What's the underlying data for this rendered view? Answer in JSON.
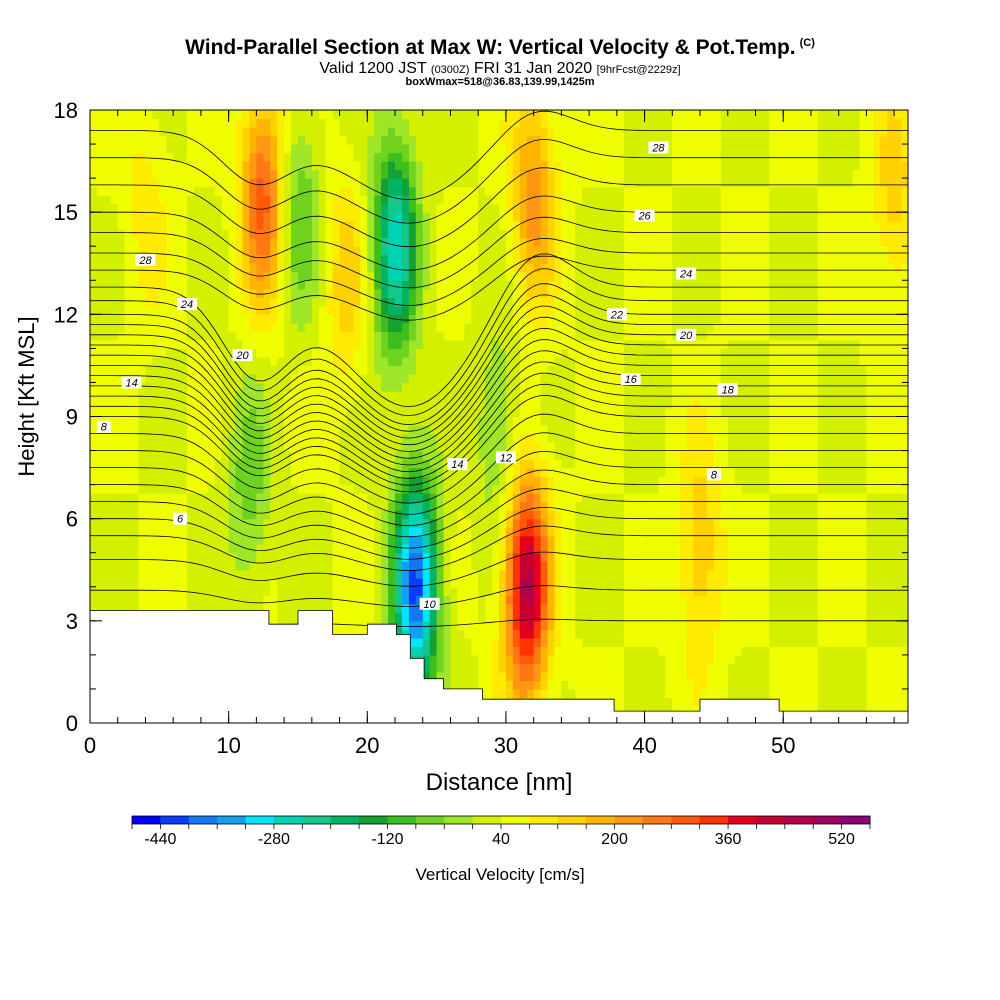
{
  "title": {
    "main": "Wind-Parallel Section at Max W: Vertical Velocity & Pot.Temp.",
    "copyright": "(C)",
    "valid_prefix": "Valid 1200 JST",
    "utc": "(0300Z)",
    "valid_date": "FRI 31 Jan 2020",
    "forecast": "[9hrFcst@2229z]",
    "box": "boxWmax=518@36.83,139.99,1425m"
  },
  "chart_data": {
    "type": "heatmap",
    "xlabel": "Distance [nm]",
    "ylabel": "Height [Kft MSL]",
    "xlim": [
      0,
      59
    ],
    "ylim": [
      0,
      18
    ],
    "x_ticks": [
      "0",
      "10",
      "20",
      "30",
      "40",
      "50"
    ],
    "y_ticks": [
      "0",
      "3",
      "6",
      "9",
      "12",
      "15",
      "18"
    ],
    "colorbar": {
      "label": "Vertical Velocity [cm/s]",
      "tick_labels": [
        "-440",
        "-280",
        "-120",
        "40",
        "200",
        "360",
        "520"
      ],
      "levels": [
        -480,
        -440,
        -400,
        -360,
        -320,
        -280,
        -240,
        -200,
        -160,
        -120,
        -80,
        -40,
        0,
        40,
        80,
        120,
        160,
        200,
        240,
        280,
        320,
        360,
        400,
        440,
        480,
        520,
        560
      ],
      "colors": [
        "#0000ff",
        "#0a3cff",
        "#1478f5",
        "#14a0f0",
        "#00e6ff",
        "#00d2b4",
        "#14c88c",
        "#00b464",
        "#14a032",
        "#3cbe1e",
        "#6ed21e",
        "#a0e628",
        "#d2f000",
        "#f0ff00",
        "#ffeb00",
        "#ffd200",
        "#ffb400",
        "#ff9614",
        "#ff7814",
        "#ff5a0a",
        "#ff3200",
        "#e6001e",
        "#c80032",
        "#b4004b",
        "#a00064",
        "#8c0078"
      ]
    },
    "contour_labels": [
      "6",
      "8",
      "10",
      "12",
      "14",
      "16",
      "18",
      "20",
      "22",
      "24",
      "26",
      "28"
    ],
    "features": [
      {
        "name": "updraft",
        "x": 12.5,
        "y": 15.5,
        "w": 260
      },
      {
        "name": "downdraft",
        "x": 15.0,
        "y": 15.0,
        "w": -120
      },
      {
        "name": "downdraft",
        "x": 11.5,
        "y": 7.0,
        "w": -100
      },
      {
        "name": "updraft",
        "x": 18.5,
        "y": 13.0,
        "w": 100
      },
      {
        "name": "downdraft",
        "x": 23.5,
        "y": 4.0,
        "w": -440
      },
      {
        "name": "downdraft",
        "x": 22.0,
        "y": 14.0,
        "w": -300
      },
      {
        "name": "updraft",
        "x": 32.0,
        "y": 15.5,
        "w": 180
      },
      {
        "name": "updraft",
        "x": 31.5,
        "y": 4.0,
        "w": 420
      },
      {
        "name": "downdraft",
        "x": 29.5,
        "y": 8.5,
        "w": -90
      },
      {
        "name": "updraft",
        "x": 44.0,
        "y": 5.0,
        "w": 120
      },
      {
        "name": "updraft",
        "x": 58.0,
        "y": 15.5,
        "w": 100
      },
      {
        "name": "updraft",
        "x": 4.0,
        "y": 15.0,
        "w": 60
      }
    ],
    "terrain": [
      [
        0,
        3.3
      ],
      [
        12.9,
        3.3
      ],
      [
        12.9,
        2.9
      ],
      [
        15,
        2.9
      ],
      [
        15,
        3.3
      ],
      [
        17.5,
        3.3
      ],
      [
        17.5,
        2.6
      ],
      [
        20,
        2.6
      ],
      [
        20,
        2.9
      ],
      [
        22.1,
        2.9
      ],
      [
        22.1,
        2.6
      ],
      [
        23.1,
        2.6
      ],
      [
        23.1,
        1.9
      ],
      [
        24.1,
        1.9
      ],
      [
        24.1,
        1.3
      ],
      [
        25.5,
        1.3
      ],
      [
        25.5,
        1.0
      ],
      [
        28.3,
        1.0
      ],
      [
        28.3,
        0.7
      ],
      [
        37.8,
        0.7
      ],
      [
        37.8,
        0.35
      ],
      [
        44,
        0.35
      ],
      [
        44,
        0.7
      ],
      [
        49.7,
        0.7
      ],
      [
        49.7,
        0.35
      ],
      [
        59,
        0.35
      ]
    ]
  }
}
